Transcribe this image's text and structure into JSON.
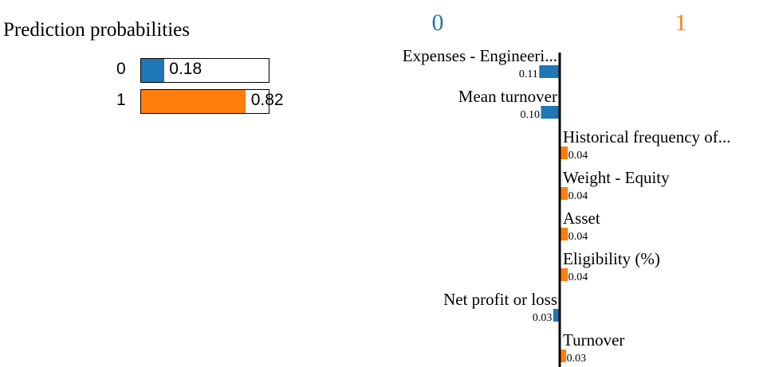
{
  "colors": {
    "class_0": "#1f77b4",
    "class_1": "#ff7f0e",
    "axis": "#000000",
    "text": "#000000"
  },
  "chart_data": [
    {
      "type": "bar",
      "orientation": "horizontal",
      "title": "Prediction probabilities",
      "categories": [
        "0",
        "1"
      ],
      "values": [
        0.18,
        0.82
      ],
      "value_labels": [
        "0.18",
        "0.82"
      ],
      "xlim": [
        0,
        1
      ]
    },
    {
      "type": "bar",
      "orientation": "horizontal",
      "class_labels": [
        "0",
        "1"
      ],
      "features": [
        {
          "name": "Expenses - Engineeri...",
          "weight": 0.11,
          "label": "0.11",
          "class": 0
        },
        {
          "name": "Mean turnover",
          "weight": 0.1,
          "label": "0.10",
          "class": 0
        },
        {
          "name": "Historical frequency of...",
          "weight": 0.04,
          "label": "0.04",
          "class": 1
        },
        {
          "name": "Weight - Equity",
          "weight": 0.04,
          "label": "0.04",
          "class": 1
        },
        {
          "name": "Asset",
          "weight": 0.04,
          "label": "0.04",
          "class": 1
        },
        {
          "name": "Eligibility (%)",
          "weight": 0.04,
          "label": "0.04",
          "class": 1
        },
        {
          "name": "Net profit or loss",
          "weight": 0.03,
          "label": "0.03",
          "class": 0
        },
        {
          "name": "Turnover",
          "weight": 0.03,
          "label": "0.03",
          "class": 1
        }
      ]
    }
  ]
}
